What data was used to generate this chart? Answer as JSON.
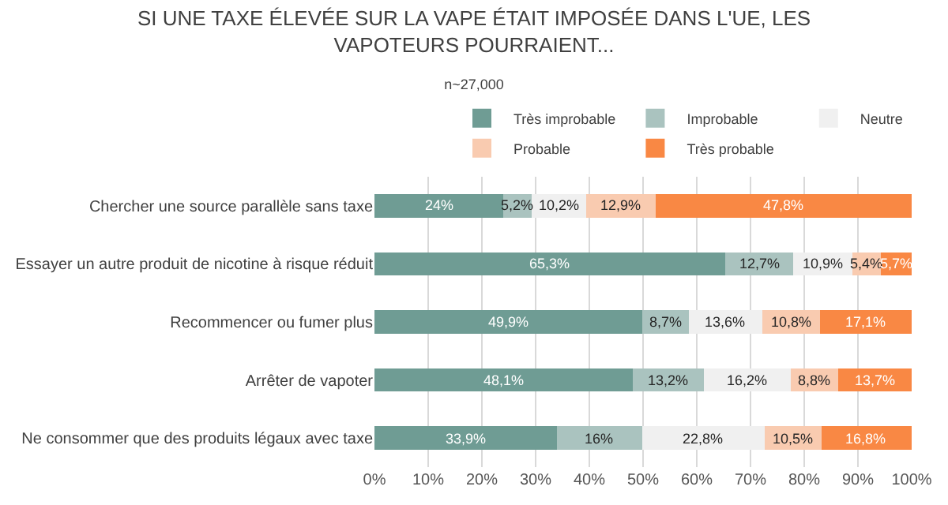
{
  "chart_data": {
    "type": "bar",
    "orientation": "horizontal",
    "stacked": true,
    "title": "SI UNE TAXE ÉLEVÉE SUR LA VAPE ÉTAIT IMPOSÉE DANS L'UE, LES VAPOTEURS POURRAIENT...",
    "subtitle": "n~27,000",
    "categories": [
      "Chercher une source parallèle sans taxe",
      "Essayer un autre produit de nicotine à risque réduit",
      "Recommencer ou fumer plus",
      "Arrêter de vapoter",
      "Ne consommer que des produits légaux avec taxe"
    ],
    "series": [
      {
        "name": "Très improbable",
        "color": "#6f9c94",
        "values": [
          24,
          65.3,
          49.9,
          48.1,
          33.9
        ],
        "value_labels": [
          "24%",
          "65,3%",
          "49,9%",
          "48,1%",
          "33,9%"
        ]
      },
      {
        "name": "Improbable",
        "color": "#aac3bf",
        "values": [
          5.2,
          12.7,
          8.7,
          13.2,
          16
        ],
        "value_labels": [
          "5,2%",
          "12,7%",
          "8,7%",
          "13,2%",
          "16%"
        ]
      },
      {
        "name": "Neutre",
        "color": "#f0f0f0",
        "values": [
          10.2,
          10.9,
          13.6,
          16.2,
          22.8
        ],
        "value_labels": [
          "10,2%",
          "10,9%",
          "13,6%",
          "16,2%",
          "22,8%"
        ]
      },
      {
        "name": "Probable",
        "color": "#f9cbb0",
        "values": [
          12.9,
          5.4,
          10.8,
          8.8,
          10.5
        ],
        "value_labels": [
          "12,9%",
          "5,4%",
          "10,8%",
          "8,8%",
          "10,5%"
        ]
      },
      {
        "name": "Très probable",
        "color": "#f98844",
        "values": [
          47.8,
          5.7,
          17.1,
          13.7,
          16.8
        ],
        "value_labels": [
          "47,8%",
          "5,7%",
          "17,1%",
          "13,7%",
          "16,8%"
        ]
      }
    ],
    "xlim": [
      0,
      100
    ],
    "xticks": [
      {
        "value": 0,
        "label": "0%"
      },
      {
        "value": 10,
        "label": "10%"
      },
      {
        "value": 20,
        "label": "20%"
      },
      {
        "value": 30,
        "label": "30%"
      },
      {
        "value": 40,
        "label": "40%"
      },
      {
        "value": 50,
        "label": "50%"
      },
      {
        "value": 60,
        "label": "60%"
      },
      {
        "value": 70,
        "label": "70%"
      },
      {
        "value": 80,
        "label": "80%"
      },
      {
        "value": 90,
        "label": "90%"
      },
      {
        "value": 100,
        "label": "100%"
      }
    ],
    "grid": "x",
    "legend": "top right"
  }
}
